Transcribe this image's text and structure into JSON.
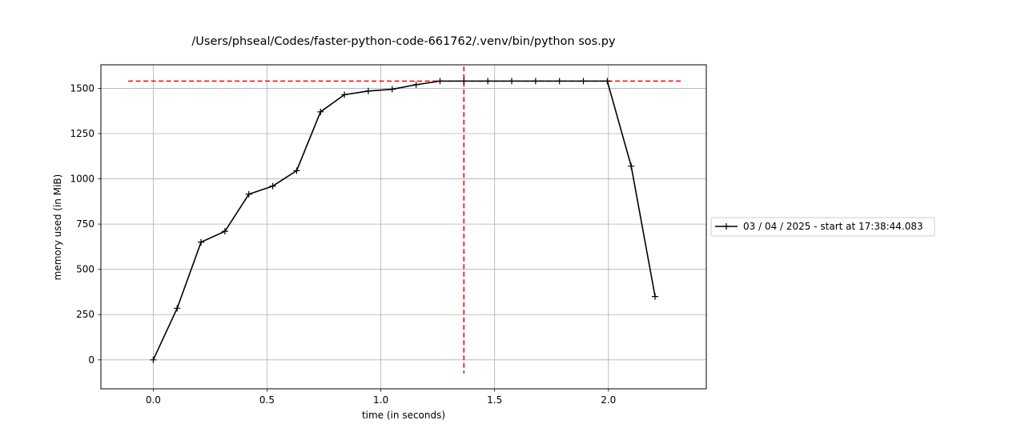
{
  "chart_data": {
    "type": "line",
    "title": "/Users/phseal/Codes/faster-python-code-661762/.venv/bin/python sos.py",
    "xlabel": "time (in seconds)",
    "ylabel": "memory used (in MiB)",
    "xlim": [
      -0.23,
      2.43
    ],
    "ylim": [
      -160,
      1630
    ],
    "xticks": [
      0.0,
      0.5,
      1.0,
      1.5,
      2.0
    ],
    "xtick_labels": [
      "0.0",
      "0.5",
      "1.0",
      "1.5",
      "2.0"
    ],
    "yticks": [
      0,
      250,
      500,
      750,
      1000,
      1250,
      1500
    ],
    "ytick_labels": [
      "0",
      "250",
      "500",
      "750",
      "1000",
      "1250",
      "1500"
    ],
    "grid": true,
    "legend_position": "center-right outside",
    "series": [
      {
        "name": "03 / 04 / 2025 - start at 17:38:44.083",
        "color": "#000000",
        "marker": "plus",
        "x": [
          0.0,
          0.105,
          0.21,
          0.315,
          0.42,
          0.525,
          0.63,
          0.735,
          0.84,
          0.945,
          1.05,
          1.155,
          1.26,
          1.365,
          1.47,
          1.575,
          1.68,
          1.785,
          1.89,
          1.995,
          2.1,
          2.205
        ],
        "y": [
          0,
          285,
          650,
          710,
          915,
          960,
          1045,
          1370,
          1465,
          1485,
          1495,
          1520,
          1540,
          1540,
          1540,
          1540,
          1540,
          1540,
          1540,
          1540,
          1070,
          350
        ]
      }
    ],
    "reference_lines": [
      {
        "orientation": "horizontal",
        "y": 1540,
        "x_from": -0.11,
        "x_to": 2.32,
        "color": "#ff0000",
        "style": "dashed"
      },
      {
        "orientation": "vertical",
        "x": 1.365,
        "y_from": -75,
        "y_to": 1620,
        "color": "#ff0000",
        "style": "dashed"
      }
    ]
  }
}
